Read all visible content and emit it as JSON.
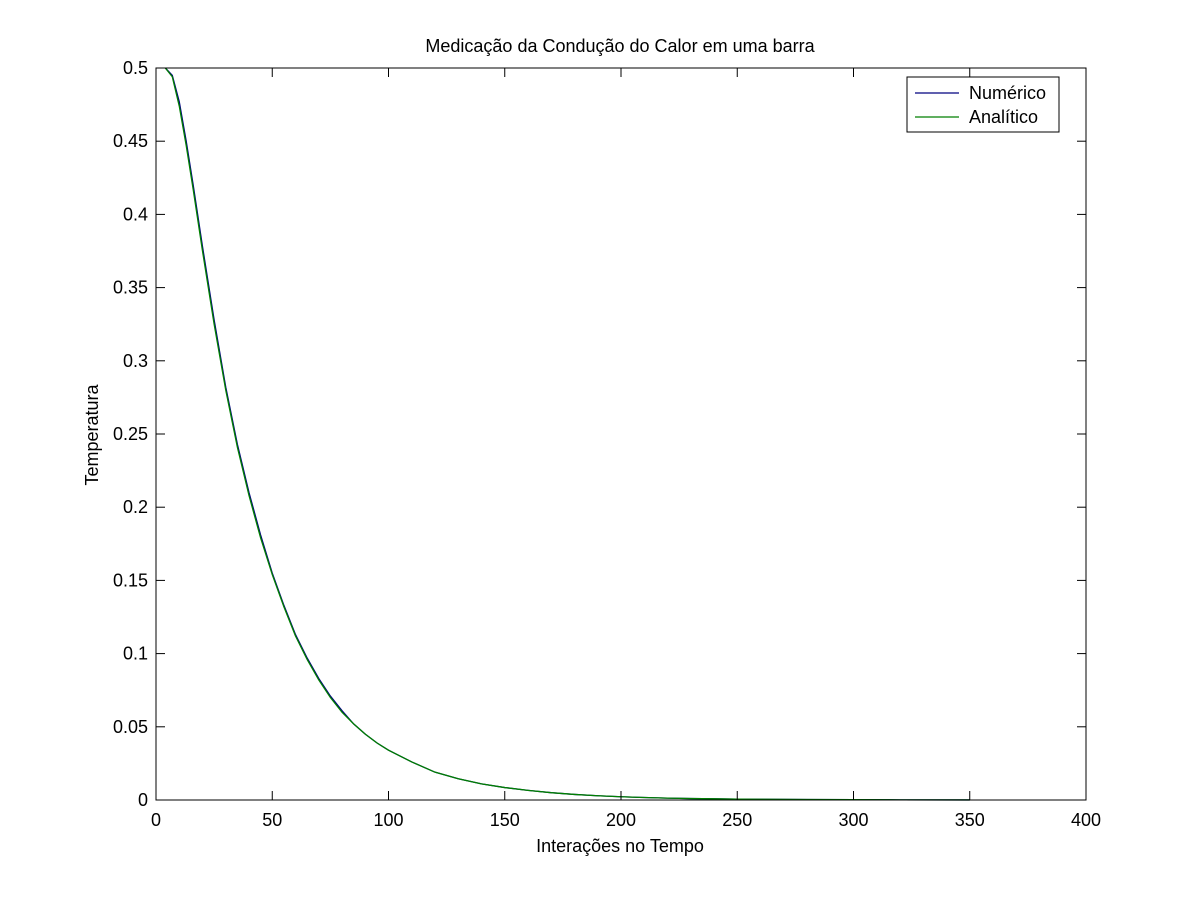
{
  "chart_data": {
    "type": "line",
    "title": "Medicação da Condução do Calor em uma barra",
    "xlabel": "Interações no Tempo",
    "ylabel": "Temperatura",
    "xlim": [
      0,
      400
    ],
    "ylim": [
      0,
      0.5
    ],
    "xticks": [
      0,
      50,
      100,
      150,
      200,
      250,
      300,
      350,
      400
    ],
    "xtick_labels": [
      "0",
      "50",
      "100",
      "150",
      "200",
      "250",
      "300",
      "350",
      "400"
    ],
    "yticks": [
      0,
      0.05,
      0.1,
      0.15,
      0.2,
      0.25,
      0.3,
      0.35,
      0.4,
      0.45,
      0.5
    ],
    "ytick_labels": [
      "0",
      "0.05",
      "0.1",
      "0.15",
      "0.2",
      "0.25",
      "0.3",
      "0.35",
      "0.4",
      "0.45",
      "0.5"
    ],
    "grid": false,
    "legend": "top-right",
    "series": [
      {
        "name": "Numérico",
        "color": "#00007f",
        "x": [
          4,
          7,
          10,
          13,
          16,
          20,
          25,
          30,
          35,
          40,
          45,
          50,
          55,
          60,
          65,
          70,
          75,
          80,
          85,
          90,
          95,
          100,
          110,
          120,
          130,
          140,
          150,
          160,
          170,
          180,
          190,
          200,
          210,
          220,
          230,
          240,
          250,
          260,
          280,
          300,
          320,
          350
        ],
        "y": [
          0.5,
          0.495,
          0.477,
          0.45,
          0.42,
          0.378,
          0.328,
          0.282,
          0.243,
          0.21,
          0.181,
          0.155,
          0.133,
          0.113,
          0.097,
          0.083,
          0.071,
          0.061,
          0.052,
          0.045,
          0.039,
          0.034,
          0.026,
          0.019,
          0.0145,
          0.011,
          0.0085,
          0.0066,
          0.005,
          0.0038,
          0.0029,
          0.0022,
          0.0017,
          0.0013,
          0.001,
          0.0008,
          0.0006,
          0.0005,
          0.0003,
          0.0002,
          0.0001,
          5e-05
        ]
      },
      {
        "name": "Analítico",
        "color": "#007f00",
        "x": [
          4,
          7,
          10,
          13,
          16,
          20,
          25,
          30,
          35,
          40,
          45,
          50,
          55,
          60,
          65,
          70,
          75,
          80,
          85,
          90,
          95,
          100,
          110,
          120,
          130,
          140,
          150,
          160,
          170,
          180,
          190,
          200,
          210,
          220,
          230,
          240,
          250,
          260,
          280,
          300,
          320,
          350
        ],
        "y": [
          0.5,
          0.494,
          0.474,
          0.447,
          0.417,
          0.375,
          0.325,
          0.28,
          0.241,
          0.208,
          0.179,
          0.154,
          0.132,
          0.112,
          0.096,
          0.082,
          0.07,
          0.06,
          0.052,
          0.045,
          0.039,
          0.034,
          0.026,
          0.019,
          0.0145,
          0.011,
          0.0085,
          0.0066,
          0.005,
          0.0038,
          0.0029,
          0.0022,
          0.0017,
          0.0013,
          0.001,
          0.0008,
          0.0006,
          0.0005,
          0.0003,
          0.0002,
          0.0001,
          5e-05
        ]
      }
    ]
  }
}
